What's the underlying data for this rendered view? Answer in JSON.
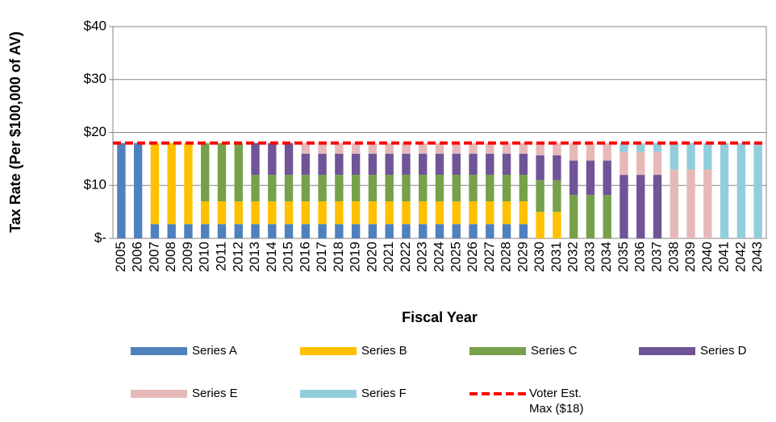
{
  "chart_data": {
    "type": "stacked_bar",
    "y_label": "Tax Rate (Per $100,000 of AV)",
    "x_label": "Fiscal Year",
    "categories": [
      "2005",
      "2006",
      "2007",
      "2008",
      "2009",
      "2010",
      "2011",
      "2012",
      "2013",
      "2014",
      "2015",
      "2016",
      "2017",
      "2018",
      "2019",
      "2020",
      "2021",
      "2022",
      "2023",
      "2024",
      "2025",
      "2026",
      "2027",
      "2028",
      "2029",
      "2030",
      "2031",
      "2032",
      "2033",
      "2034",
      "2035",
      "2036",
      "2037",
      "2038",
      "2039",
      "2040",
      "2041",
      "2042",
      "2043"
    ],
    "series": [
      {
        "name": "Series A",
        "color": "#4f81bd",
        "values": [
          18,
          18,
          2.7,
          2.7,
          2.7,
          2.7,
          2.7,
          2.7,
          2.7,
          2.7,
          2.7,
          2.7,
          2.7,
          2.7,
          2.7,
          2.7,
          2.7,
          2.7,
          2.7,
          2.7,
          2.7,
          2.7,
          2.7,
          2.7,
          2.7,
          0,
          0,
          0,
          0,
          0,
          0,
          0,
          0,
          0,
          0,
          0,
          0,
          0,
          0
        ]
      },
      {
        "name": "Series B",
        "color": "#ffc000",
        "values": [
          0,
          0,
          15.3,
          15.3,
          15.3,
          4.3,
          4.3,
          4.3,
          4.3,
          4.3,
          4.3,
          4.3,
          4.3,
          4.3,
          4.3,
          4.3,
          4.3,
          4.3,
          4.3,
          4.3,
          4.3,
          4.3,
          4.3,
          4.3,
          4.3,
          5,
          5,
          0,
          0,
          0,
          0,
          0,
          0,
          0,
          0,
          0,
          0,
          0,
          0
        ]
      },
      {
        "name": "Series C",
        "color": "#77a04b",
        "values": [
          0,
          0,
          0,
          0,
          0,
          11,
          11,
          11,
          5,
          5,
          5,
          5,
          5,
          5,
          5,
          5,
          5,
          5,
          5,
          5,
          5,
          5,
          5,
          5,
          5,
          6,
          6,
          8.2,
          8.2,
          8.2,
          0,
          0,
          0,
          0,
          0,
          0,
          0,
          0,
          0
        ]
      },
      {
        "name": "Series D",
        "color": "#6f5597",
        "values": [
          0,
          0,
          0,
          0,
          0,
          0,
          0,
          0,
          6,
          6,
          6,
          4,
          4,
          4,
          4,
          4,
          4,
          4,
          4,
          4,
          4,
          4,
          4,
          4,
          4,
          4.7,
          4.7,
          6.5,
          6.5,
          6.5,
          12,
          12,
          12,
          0,
          0,
          0,
          0,
          0,
          0
        ]
      },
      {
        "name": "Series E",
        "color": "#e6b9b8",
        "values": [
          0,
          0,
          0,
          0,
          0,
          0,
          0,
          0,
          0,
          0,
          0,
          2,
          2,
          2,
          2,
          2,
          2,
          2,
          2,
          2,
          2,
          2,
          2,
          2,
          2,
          2.3,
          2.3,
          3.3,
          3.3,
          3.3,
          4.3,
          4.3,
          4.3,
          13,
          13,
          13,
          0,
          0,
          0
        ]
      },
      {
        "name": "Series F",
        "color": "#92cddc",
        "values": [
          0,
          0,
          0,
          0,
          0,
          0,
          0,
          0,
          0,
          0,
          0,
          0,
          0,
          0,
          0,
          0,
          0,
          0,
          0,
          0,
          0,
          0,
          0,
          0,
          0,
          0,
          0,
          0,
          0,
          0,
          1.7,
          1.7,
          1.7,
          5,
          5,
          5,
          18,
          18,
          18
        ]
      }
    ],
    "reference_line": {
      "name": "Voter Est. Max ($18)",
      "value": 18,
      "color": "#ff0000"
    },
    "ylim": [
      0,
      40
    ],
    "yticks": [
      {
        "value": 0,
        "label": "$-"
      },
      {
        "value": 10,
        "label": "$10"
      },
      {
        "value": 20,
        "label": "$20"
      },
      {
        "value": 30,
        "label": "$30"
      },
      {
        "value": 40,
        "label": "$40"
      }
    ],
    "grid": true
  }
}
